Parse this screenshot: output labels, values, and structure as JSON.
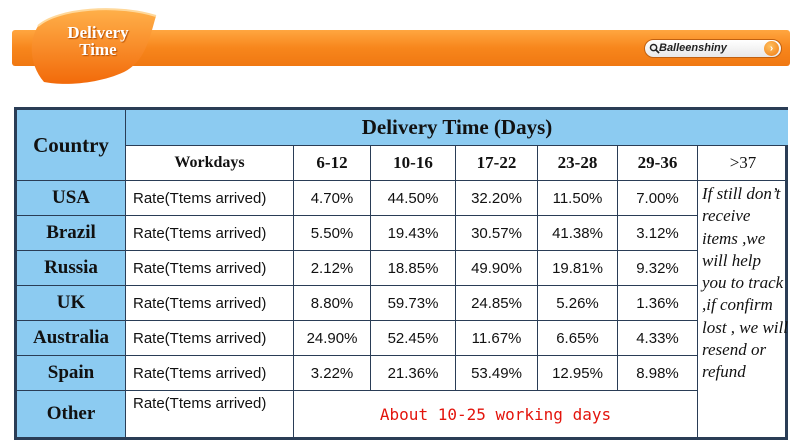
{
  "header": {
    "badge_line1": "Delivery",
    "badge_line2": "Time",
    "search_icon": "search-icon",
    "search_text": "Balleenshiny",
    "go_icon": "arrow-right-icon",
    "go_glyph": "›"
  },
  "table": {
    "country_header": "Country",
    "delivery_header": "Delivery Time (Days)",
    "workdays_label": "Workdays",
    "ranges": [
      "6-12",
      "10-16",
      "17-22",
      "23-28",
      "29-36",
      ">37"
    ],
    "rate_label": "Rate(Ttems arrived)",
    "rows": [
      {
        "country": "USA",
        "values": [
          "4.70%",
          "44.50%",
          "32.20%",
          "11.50%",
          "7.00%"
        ]
      },
      {
        "country": "Brazil",
        "values": [
          "5.50%",
          "19.43%",
          "30.57%",
          "41.38%",
          "3.12%"
        ]
      },
      {
        "country": "Russia",
        "values": [
          "2.12%",
          "18.85%",
          "49.90%",
          "19.81%",
          "9.32%"
        ]
      },
      {
        "country": "UK",
        "values": [
          "8.80%",
          "59.73%",
          "24.85%",
          "5.26%",
          "1.36%"
        ]
      },
      {
        "country": "Australia",
        "values": [
          "24.90%",
          "52.45%",
          "11.67%",
          "6.65%",
          "4.33%"
        ]
      },
      {
        "country": "Spain",
        "values": [
          "3.22%",
          "21.36%",
          "53.49%",
          "12.95%",
          "8.98%"
        ]
      }
    ],
    "other_country": "Other",
    "other_note": "About 10-25 working days",
    "side_note": "If still don’t receive items ,we will help you to track ,if confirm lost , we will resend or refund"
  },
  "colors": {
    "header_orange": "#f7861c",
    "table_blue": "#8ccbf1",
    "border_navy": "#2a3d56",
    "note_red": "#e3140c"
  }
}
